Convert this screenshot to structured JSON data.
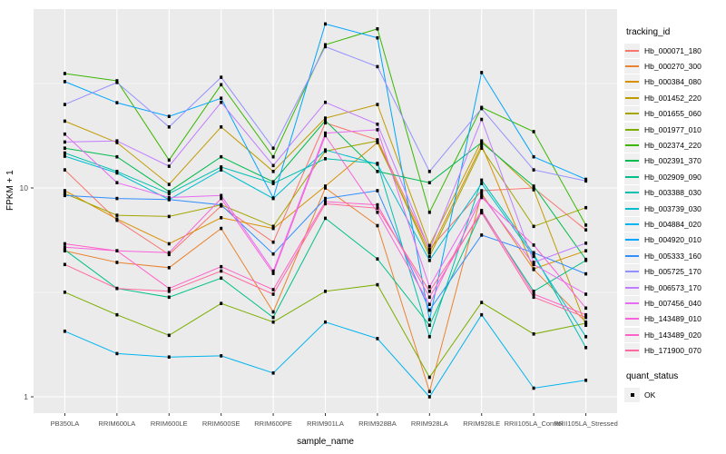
{
  "chart_data": {
    "type": "line",
    "title": "",
    "xlabel": "sample_name",
    "ylabel": "FPKM + 1",
    "y_scale": "log10",
    "ylim": [
      0.84,
      72
    ],
    "y_major_ticks": [
      10,
      1
    ],
    "y_tick_labels": [
      "10",
      "1"
    ],
    "y_minor_ticks": [
      31.62,
      3.162
    ],
    "grid": "on",
    "panel_fill": "#EBEBEB",
    "gridline_color": "#FFFFFF",
    "point_marker": "black-square",
    "categories": [
      "PB350LA",
      "RRIM600LA",
      "RRIM600LE",
      "RRIM600SE",
      "RRIM600PE",
      "RRIM901LA",
      "RRIM928BA",
      "RRIM928LA",
      "RRIM928LE",
      "RRII105LA_Control",
      "RRII105LA_Stressed"
    ],
    "series": [
      {
        "name": "Hb_000071_180",
        "color": "#F8766D",
        "values": [
          12.2,
          7.0,
          4.8,
          8.2,
          5.5,
          20.5,
          17.0,
          5.1,
          9.7,
          10.0,
          6.3
        ]
      },
      {
        "name": "Hb_000270_300",
        "color": "#EA8331",
        "values": [
          5.0,
          4.4,
          4.15,
          6.4,
          2.55,
          10.0,
          6.6,
          1.06,
          9.4,
          4.07,
          2.28
        ]
      },
      {
        "name": "Hb_000384_080",
        "color": "#D89000",
        "values": [
          9.7,
          7.1,
          5.4,
          7.2,
          6.4,
          10.2,
          16.5,
          4.9,
          16.0,
          4.1,
          5.0
        ]
      },
      {
        "name": "Hb_001452_220",
        "color": "#C09B00",
        "values": [
          20.9,
          16.5,
          10.4,
          19.6,
          12.0,
          21.6,
          25.1,
          5.3,
          16.8,
          9.8,
          2.2
        ]
      },
      {
        "name": "Hb_001655_060",
        "color": "#A3A500",
        "values": [
          9.4,
          7.4,
          7.3,
          8.3,
          6.55,
          15.0,
          16.8,
          4.7,
          15.5,
          6.55,
          8.05
        ]
      },
      {
        "name": "Hb_001977_010",
        "color": "#7CAE00",
        "values": [
          3.17,
          2.47,
          1.97,
          2.8,
          2.28,
          3.2,
          3.44,
          1.24,
          2.83,
          2.0,
          2.25
        ]
      },
      {
        "name": "Hb_002374_220",
        "color": "#39B600",
        "values": [
          35.3,
          32.6,
          13.6,
          31.2,
          14.1,
          48.5,
          57.8,
          7.65,
          24.3,
          18.6,
          6.64
        ]
      },
      {
        "name": "Hb_002391_370",
        "color": "#00BB4E",
        "values": [
          15.5,
          14.1,
          9.6,
          14.1,
          10.7,
          21.0,
          12.0,
          10.6,
          16.5,
          10.2,
          4.55
        ]
      },
      {
        "name": "Hb_002909_090",
        "color": "#00C087",
        "values": [
          5.05,
          3.3,
          3.0,
          3.7,
          2.4,
          7.16,
          4.57,
          2.2,
          7.7,
          3.2,
          4.5
        ]
      },
      {
        "name": "Hb_003388_030",
        "color": "#00C0AF",
        "values": [
          14.7,
          12.0,
          9.4,
          12.6,
          10.5,
          13.8,
          13.1,
          1.94,
          10.9,
          4.83,
          1.72
        ]
      },
      {
        "name": "Hb_003739_030",
        "color": "#00BDD0",
        "values": [
          14.2,
          11.8,
          8.8,
          12.2,
          8.9,
          15.2,
          13.0,
          4.5,
          10.5,
          4.7,
          1.94
        ]
      },
      {
        "name": "Hb_004884_020",
        "color": "#00B4EF",
        "values": [
          2.06,
          1.61,
          1.55,
          1.57,
          1.3,
          2.28,
          1.9,
          1.0,
          2.47,
          1.1,
          1.2
        ]
      },
      {
        "name": "Hb_004920_010",
        "color": "#00A5FF",
        "values": [
          32.3,
          25.6,
          22.0,
          26.9,
          8.95,
          61.0,
          52.3,
          2.34,
          35.7,
          14.1,
          11.0
        ]
      },
      {
        "name": "Hb_005333_160",
        "color": "#328DFF",
        "values": [
          9.2,
          8.9,
          8.8,
          8.3,
          4.83,
          8.9,
          9.7,
          2.6,
          5.95,
          4.9,
          3.88
        ]
      },
      {
        "name": "Hb_005725_170",
        "color": "#9590FF",
        "values": [
          25.1,
          32.0,
          19.6,
          33.9,
          15.5,
          47.5,
          38.1,
          12.0,
          24.0,
          12.2,
          10.8
        ]
      },
      {
        "name": "Hb_006573_170",
        "color": "#C27CFF",
        "values": [
          16.6,
          16.8,
          12.7,
          25.7,
          12.8,
          25.7,
          20.2,
          5.06,
          21.3,
          4.4,
          5.44
        ]
      },
      {
        "name": "Hb_007456_040",
        "color": "#E76BF3",
        "values": [
          18.1,
          10.6,
          9.0,
          9.2,
          4.0,
          18.3,
          19.0,
          3.36,
          9.2,
          4.3,
          3.1
        ]
      },
      {
        "name": "Hb_143489_010",
        "color": "#FA62DB",
        "values": [
          5.2,
          5.0,
          4.9,
          8.9,
          3.9,
          17.8,
          7.65,
          2.77,
          9.0,
          5.33,
          2.66
        ]
      },
      {
        "name": "Hb_143489_020",
        "color": "#FF61C9",
        "values": [
          5.4,
          5.0,
          3.3,
          4.2,
          3.26,
          8.6,
          8.3,
          3.0,
          7.8,
          3.1,
          2.47
        ]
      },
      {
        "name": "Hb_171900_070",
        "color": "#FF689F",
        "values": [
          4.3,
          3.3,
          3.2,
          4.0,
          3.1,
          8.4,
          8.0,
          3.2,
          7.6,
          3.0,
          2.4
        ]
      }
    ],
    "legend": {
      "position": "right",
      "color_title": "tracking_id",
      "shape_title": "quant_status",
      "shape_entries": [
        {
          "label": "OK",
          "marker": "black-square"
        }
      ]
    },
    "axis_text_color": "#4D4D4D"
  }
}
